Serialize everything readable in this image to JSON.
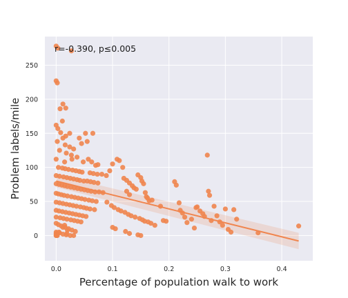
{
  "chart_data": {
    "type": "scatter",
    "title": "",
    "xlabel": "Percentage of population walk to work",
    "ylabel": "Problem labels/mile",
    "xlim": [
      -0.02,
      0.455
    ],
    "ylim": [
      -37,
      292
    ],
    "xticks": [
      0.0,
      0.1,
      0.2,
      0.3,
      0.4
    ],
    "xtick_labels": [
      "0.0",
      "0.1",
      "0.2",
      "0.3",
      "0.4"
    ],
    "yticks": [
      0,
      50,
      100,
      150,
      200,
      250
    ],
    "ytick_labels": [
      "0",
      "50",
      "100",
      "150",
      "200",
      "250"
    ],
    "annotation": "r=-0.390, p≤0.005",
    "grid": true,
    "legend": "none",
    "colors": {
      "points": "#f0854e",
      "line": "#f0854e",
      "band": "#f0854e",
      "background": "#eaeaf2",
      "grid": "#ffffff",
      "text": "#262626"
    },
    "regression": {
      "x": [
        0.0,
        0.43
      ],
      "y": [
        80,
        -8
      ],
      "ci_lower": [
        71,
        -20
      ],
      "ci_upper": [
        89,
        4
      ]
    },
    "series": [
      {
        "x": [
          0.0,
          0.003,
          0.027,
          0.0,
          0.002,
          0.012,
          0.017,
          0.007,
          0.011,
          0.0,
          0.003,
          0.008,
          0.024,
          0.017,
          0.012,
          0.002,
          0.041,
          0.045,
          0.016,
          0.024,
          0.031,
          0.006,
          0.018,
          0.027,
          0.052,
          0.055,
          0.065,
          0.037,
          0.0,
          0.028,
          0.015,
          0.048,
          0.057,
          0.063,
          0.07,
          0.074,
          0.004,
          0.011,
          0.016,
          0.022,
          0.029,
          0.035,
          0.041,
          0.046,
          0.06,
          0.066,
          0.073,
          0.081,
          0.089,
          0.0,
          0.006,
          0.013,
          0.019,
          0.025,
          0.031,
          0.037,
          0.042,
          0.049,
          0.055,
          0.061,
          0.067,
          0.074,
          0.0,
          0.005,
          0.01,
          0.015,
          0.02,
          0.026,
          0.032,
          0.038,
          0.044,
          0.05,
          0.056,
          0.062,
          0.069,
          0.076,
          0.083,
          0.0,
          0.004,
          0.009,
          0.014,
          0.02,
          0.027,
          0.033,
          0.039,
          0.045,
          0.051,
          0.058,
          0.064,
          0.071,
          0.0,
          0.006,
          0.012,
          0.018,
          0.024,
          0.03,
          0.036,
          0.043,
          0.049,
          0.054,
          0.06,
          0.068,
          0.0,
          0.005,
          0.011,
          0.017,
          0.023,
          0.029,
          0.035,
          0.041,
          0.047,
          0.053,
          0.0,
          0.007,
          0.013,
          0.019,
          0.026,
          0.032,
          0.038,
          0.044,
          0.0,
          0.004,
          0.009,
          0.016,
          0.022,
          0.028,
          0.034,
          0.0,
          0.006,
          0.012,
          0.018,
          0.025,
          0.031,
          0.0,
          0.005,
          0.012,
          0.02,
          0.015,
          0.019,
          0.0,
          0.001,
          0.002,
          0.0,
          0.001,
          0.0,
          0.095,
          0.1,
          0.108,
          0.112,
          0.118,
          0.12,
          0.125,
          0.13,
          0.135,
          0.138,
          0.142,
          0.145,
          0.15,
          0.152,
          0.155,
          0.158,
          0.16,
          0.162,
          0.165,
          0.17,
          0.09,
          0.098,
          0.103,
          0.11,
          0.115,
          0.122,
          0.128,
          0.133,
          0.14,
          0.148,
          0.153,
          0.157,
          0.163,
          0.168,
          0.175,
          0.1,
          0.105,
          0.123,
          0.13,
          0.145,
          0.15,
          0.125,
          0.13,
          0.185,
          0.19,
          0.195,
          0.21,
          0.213,
          0.218,
          0.22,
          0.224,
          0.228,
          0.232,
          0.24,
          0.245,
          0.25,
          0.255,
          0.26,
          0.263,
          0.27,
          0.272,
          0.275,
          0.28,
          0.285,
          0.29,
          0.295,
          0.3,
          0.305,
          0.31,
          0.315,
          0.32,
          0.358,
          0.43,
          0.248,
          0.268
        ],
        "y": [
          278,
          275,
          271,
          227,
          224,
          193,
          187,
          186,
          168,
          162,
          157,
          151,
          150,
          146,
          143,
          138,
          143,
          135,
          133,
          130,
          127,
          125,
          121,
          118,
          150,
          138,
          150,
          115,
          112,
          112,
          108,
          108,
          112,
          108,
          103,
          104,
          100,
          99,
          98,
          97,
          96,
          95,
          94,
          93,
          92,
          91,
          90,
          90,
          88,
          88,
          87,
          86,
          85,
          84,
          83,
          82,
          81,
          80,
          80,
          79,
          78,
          77,
          76,
          75,
          74,
          73,
          72,
          71,
          70,
          69,
          68,
          67,
          66,
          65,
          64,
          64,
          63,
          62,
          61,
          60,
          59,
          58,
          57,
          56,
          55,
          54,
          53,
          52,
          51,
          50,
          49,
          48,
          47,
          46,
          45,
          44,
          43,
          42,
          41,
          40,
          39,
          38,
          37,
          36,
          35,
          34,
          33,
          32,
          31,
          30,
          29,
          28,
          27,
          26,
          25,
          24,
          23,
          22,
          21,
          20,
          18,
          16,
          14,
          12,
          10,
          8,
          6,
          5,
          4,
          2,
          1,
          0,
          0,
          3,
          5,
          12,
          8,
          15,
          3,
          0,
          0,
          0,
          0,
          1,
          2,
          95,
          105,
          112,
          110,
          100,
          84,
          81,
          77,
          73,
          70,
          68,
          89,
          85,
          80,
          76,
          63,
          57,
          55,
          51,
          52,
          49,
          44,
          41,
          38,
          36,
          34,
          31,
          29,
          27,
          25,
          23,
          21,
          20,
          18,
          15,
          12,
          10,
          6,
          3,
          1,
          0,
          65,
          60,
          43,
          22,
          21,
          79,
          74,
          48,
          37,
          33,
          27,
          19,
          24,
          11,
          42,
          36,
          32,
          28,
          65,
          59,
          22,
          43,
          29,
          20,
          15,
          39,
          9,
          5,
          38,
          24,
          4,
          14,
          41,
          118
        ]
      }
    ]
  }
}
